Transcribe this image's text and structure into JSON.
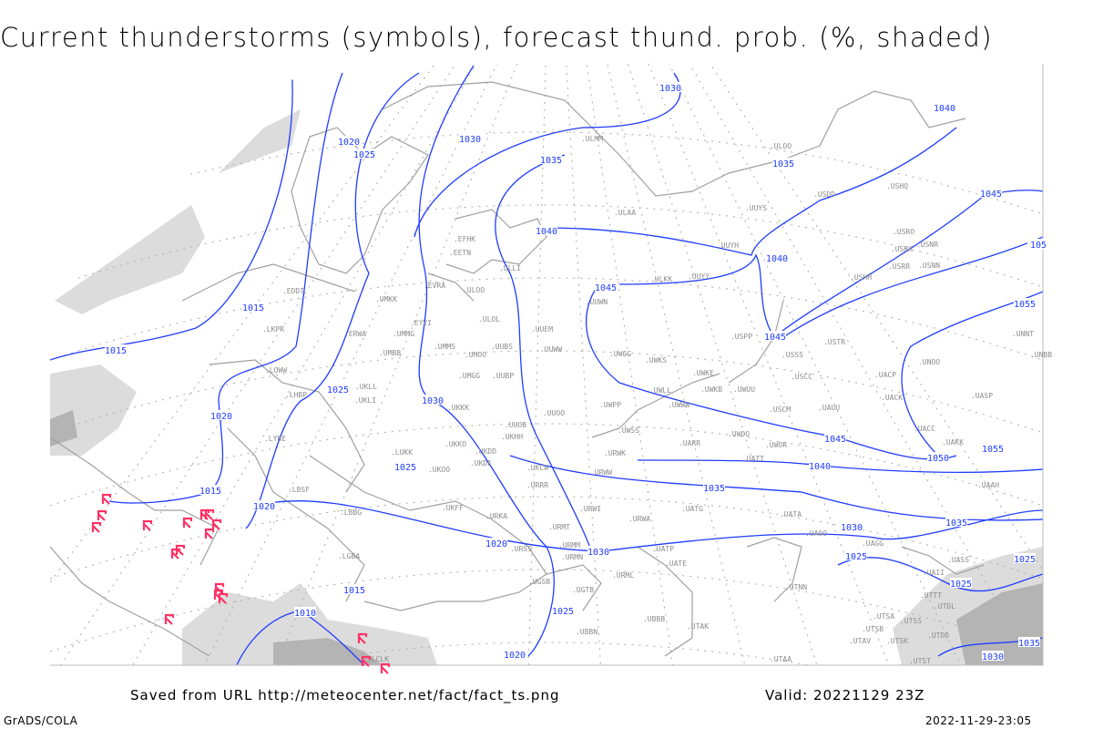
{
  "title": "Current thunderstorms (symbols), forecast thund. prob. (%, shaded)",
  "footer": {
    "saved_from": "Saved from URL http://meteocenter.net/fact/fact_ts.png",
    "valid": "Valid: 20221129 23Z",
    "software": "GrADS/COLA",
    "timestamp": "2022-11-29-23:05"
  },
  "colors": {
    "isobar": "#1f3cff",
    "coastline": "#a0a0a0",
    "station_label": "#8c8c8c",
    "thunderstorm_symbol": "#ff3366",
    "probability_shading_light": "#dcdcdc",
    "probability_shading_dark": "#b4b4b4"
  },
  "isobar_labels": [
    "1030",
    "1040",
    "1020",
    "1025",
    "1030",
    "1035",
    "1035",
    "1045",
    "1040",
    "1040",
    "105",
    "1045",
    "1055",
    "1015",
    "1045",
    "1015",
    "1025",
    "1030",
    "1020",
    "1045",
    "1055",
    "1050",
    "1025",
    "1040",
    "1035",
    "1015",
    "1020",
    "1030",
    "1035",
    "1020",
    "1030",
    "1025",
    "1025",
    "1015",
    "1025",
    "1010",
    "1020",
    "1030",
    "1035",
    "1025"
  ],
  "stations": [
    "ULMM",
    "ULOO",
    "USDD",
    "USHQ",
    "UUYS",
    "ULAA",
    "EFHK",
    "EETN",
    "USRO",
    "UUYH",
    "USRK",
    "USNR",
    "USRR",
    "USNN",
    "ULLI",
    "ULKK",
    "UUYY",
    "USHH",
    "EDDT",
    "EVRA",
    "ULOO",
    "UMKK",
    "UUWN",
    "LKPR",
    "EYVI",
    "ULOL",
    "UUEM",
    "ERWA",
    "UMMG",
    "UUWW",
    "UMBB",
    "UMMS",
    "UMOO",
    "UUBS",
    "UWGG",
    "USPP",
    "USSS",
    "USTR",
    "UNNT",
    "UNBB",
    "UWKS",
    "UWKE",
    "USCC",
    "UACP",
    "UNOO",
    "LOWW",
    "UMGG",
    "UUBP",
    "UKLL",
    "UWLL",
    "UWKB",
    "UWUU",
    "UACK",
    "UASP",
    "LHBP",
    "UKLI",
    "UKKK",
    "UWPP",
    "UWWW",
    "USCM",
    "UAUU",
    "UUOO",
    "UUOB",
    "LYBE",
    "UWSS",
    "UWOO",
    "UACC",
    "UKHH",
    "UKKO",
    "UKDD",
    "UWOR",
    "UARR",
    "UAKK",
    "LUKK",
    "URWK",
    "UATT",
    "UKDE",
    "UKCW",
    "UKOO",
    "URWW",
    "LBSF",
    "URRR",
    "UAAH",
    "UKFF",
    "URKA",
    "LBBG",
    "URWI",
    "UATG",
    "URMT",
    "URWA",
    "UATA",
    "UAOO",
    "UAGG",
    "UASS",
    "LGBA",
    "URSS",
    "URMM",
    "URMN",
    "UATP",
    "UATE",
    "UAII",
    "UTTT",
    "UTNN",
    "UGSB",
    "UGTB",
    "URML",
    "UTDL",
    "UBBB",
    "UTAK",
    "UBBN",
    "UTSA",
    "UTSB",
    "UTSS",
    "UTDD",
    "UTAV",
    "UTSK",
    "UTST",
    "UTAA",
    "LCLK"
  ]
}
